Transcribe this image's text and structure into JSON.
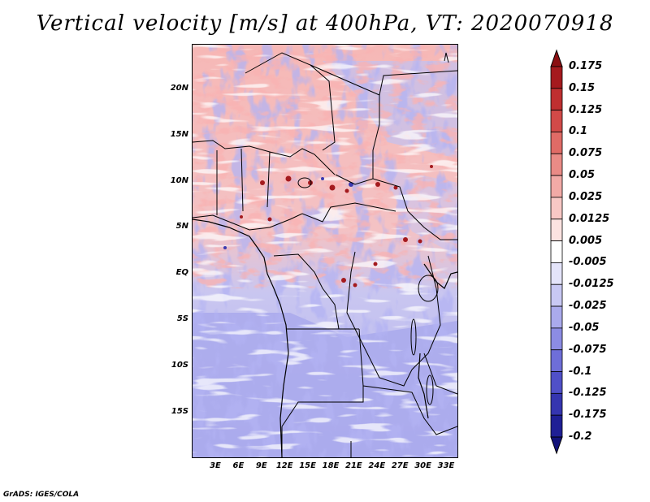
{
  "title": "Vertical velocity [m/s] at 400hPa, VT: 2020070918",
  "y_ticks": [
    "20N",
    "15N",
    "10N",
    "5N",
    "EQ",
    "5S",
    "10S",
    "15S"
  ],
  "x_ticks": [
    "3E",
    "6E",
    "9E",
    "12E",
    "15E",
    "18E",
    "21E",
    "24E",
    "27E",
    "30E",
    "33E"
  ],
  "colorbar": {
    "labels": [
      "0.175",
      "0.15",
      "0.125",
      "0.1",
      "0.075",
      "0.05",
      "0.025",
      "0.0125",
      "0.005",
      "-0.005",
      "-0.0125",
      "-0.025",
      "-0.05",
      "-0.075",
      "-0.1",
      "-0.125",
      "-0.175",
      "-0.2"
    ],
    "colors": [
      "#8b0f12",
      "#a51a1e",
      "#bf2f30",
      "#d24a48",
      "#e06b66",
      "#ea8b86",
      "#f2aaa6",
      "#f8c8c5",
      "#fce3e1",
      "#ffffff",
      "#e4e4fa",
      "#c8c8f3",
      "#aaaaec",
      "#8c8ce3",
      "#6e6ed8",
      "#5050c8",
      "#3535b0",
      "#1f1f95",
      "#12127a"
    ]
  },
  "credit": "GrADS: IGES/COLA"
}
